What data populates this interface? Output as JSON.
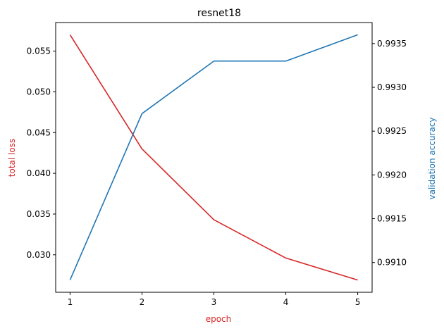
{
  "chart_data": {
    "type": "line",
    "title": "resnet18",
    "xlabel": "epoch",
    "x": [
      1,
      2,
      3,
      4,
      5
    ],
    "x_ticks": [
      "1",
      "2",
      "3",
      "4",
      "5"
    ],
    "xlim": [
      0.8,
      5.2
    ],
    "grid": false,
    "legend": "none",
    "series": [
      {
        "axis": "left",
        "color": "#d62728",
        "values": [
          0.057,
          0.043,
          0.0343,
          0.0296,
          0.0269
        ]
      },
      {
        "axis": "right",
        "color": "#1f77b4",
        "values": [
          0.9908,
          0.9927,
          0.9933,
          0.9933,
          0.9936
        ]
      }
    ],
    "y_left": {
      "label": "total loss",
      "color": "#d62728",
      "ylim": [
        0.0254,
        0.05851
      ],
      "ticks": [
        0.03,
        0.035,
        0.04,
        0.045,
        0.05,
        0.055
      ],
      "tick_labels": [
        "0.030",
        "0.035",
        "0.040",
        "0.045",
        "0.050",
        "0.055"
      ]
    },
    "y_right": {
      "label": "validation accuracy",
      "color": "#1f77b4",
      "ylim": [
        0.99066,
        0.99374
      ],
      "ticks": [
        0.991,
        0.9915,
        0.992,
        0.9925,
        0.993,
        0.9935
      ],
      "tick_labels": [
        "0.9910",
        "0.9915",
        "0.9920",
        "0.9925",
        "0.9930",
        "0.9935"
      ]
    }
  }
}
